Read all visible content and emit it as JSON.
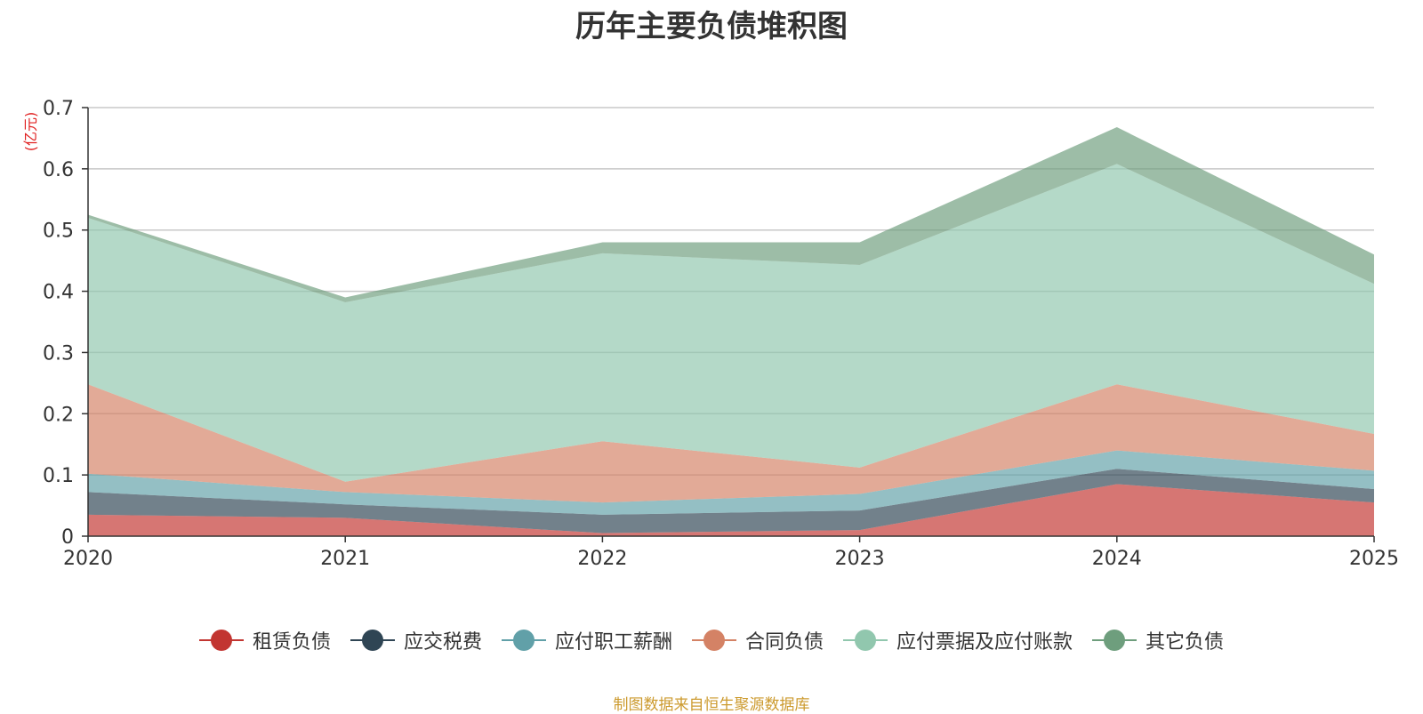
{
  "chart_data": {
    "type": "area",
    "stacked": true,
    "title": "历年主要负债堆积图",
    "ylabel": "(亿元)",
    "xlabel": "",
    "x": [
      "2020",
      "2021",
      "2022",
      "2023",
      "2024",
      "2025"
    ],
    "ylim": [
      0,
      0.7
    ],
    "yticks": [
      0,
      0.1,
      0.2,
      0.3,
      0.4,
      0.5,
      0.6,
      0.7
    ],
    "ytick_labels": [
      "0",
      "0.1",
      "0.2",
      "0.3",
      "0.4",
      "0.5",
      "0.6",
      "0.7"
    ],
    "grid": true,
    "legend_position": "bottom",
    "series": [
      {
        "name": "租赁负债",
        "color": "#c23531",
        "values": [
          0.035,
          0.03,
          0.005,
          0.01,
          0.085,
          0.055
        ]
      },
      {
        "name": "应交税费",
        "color": "#2f4554",
        "values": [
          0.037,
          0.022,
          0.03,
          0.032,
          0.025,
          0.022
        ]
      },
      {
        "name": "应付职工薪酬",
        "color": "#61a0a8",
        "values": [
          0.03,
          0.02,
          0.02,
          0.027,
          0.03,
          0.03
        ]
      },
      {
        "name": "合同负债",
        "color": "#d48265",
        "values": [
          0.146,
          0.017,
          0.1,
          0.043,
          0.108,
          0.06
        ]
      },
      {
        "name": "应付票据及应付账款",
        "color": "#91c7ae",
        "values": [
          0.272,
          0.293,
          0.307,
          0.331,
          0.36,
          0.245
        ]
      },
      {
        "name": "其它负债",
        "color": "#6e9e7d",
        "values": [
          0.005,
          0.008,
          0.018,
          0.037,
          0.06,
          0.048
        ]
      }
    ]
  },
  "source_note": "制图数据来自恒生聚源数据库"
}
